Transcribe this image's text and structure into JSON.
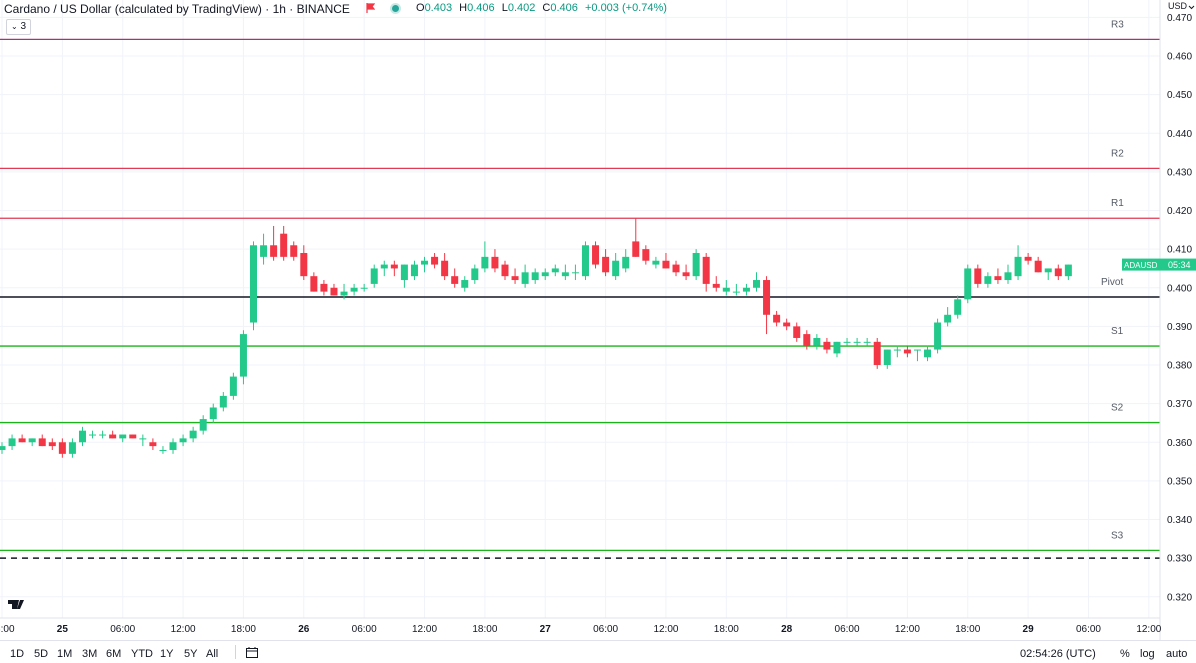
{
  "header": {
    "title": "Cardano / US Dollar (calculated by TradingView) · 1h · BINANCE",
    "ohlc": [
      {
        "k": "O",
        "v": "0.403"
      },
      {
        "k": "H",
        "v": "0.406"
      },
      {
        "k": "L",
        "v": "0.402"
      },
      {
        "k": "C",
        "v": "0.406"
      },
      {
        "k": "",
        "v": "+0.003 (+0.74%)"
      }
    ],
    "indicator_count": "3",
    "currency": "USD"
  },
  "colors": {
    "up": "#26a69a",
    "up_fill": "#22c98a",
    "down": "#f23645",
    "resistance": "#e03a55",
    "r3": "#a7327a",
    "support": "#1ab31a",
    "pivot": "#131722",
    "grid": "#f0f3fa"
  },
  "chart_data": {
    "type": "candlestick",
    "symbol": "ADAUSD",
    "timeframe": "1h",
    "price_label": {
      "symbol": "ADAUSD",
      "countdown": "05:34",
      "price": 0.406
    },
    "ylim": [
      0.3145,
      0.4745
    ],
    "yticks": [
      0.47,
      0.46,
      0.45,
      0.44,
      0.43,
      0.42,
      0.41,
      0.4,
      0.39,
      0.38,
      0.37,
      0.36,
      0.35,
      0.34,
      0.33,
      0.32
    ],
    "xticks": [
      {
        "t": 0,
        "label": "18:00"
      },
      {
        "t": 6,
        "label": "25"
      },
      {
        "t": 12,
        "label": "06:00"
      },
      {
        "t": 18,
        "label": "12:00"
      },
      {
        "t": 24,
        "label": "18:00"
      },
      {
        "t": 30,
        "label": "26"
      },
      {
        "t": 36,
        "label": "06:00"
      },
      {
        "t": 42,
        "label": "12:00"
      },
      {
        "t": 48,
        "label": "18:00"
      },
      {
        "t": 54,
        "label": "27"
      },
      {
        "t": 60,
        "label": "06:00"
      },
      {
        "t": 66,
        "label": "12:00"
      },
      {
        "t": 72,
        "label": "18:00"
      },
      {
        "t": 78,
        "label": "28"
      },
      {
        "t": 84,
        "label": "06:00"
      },
      {
        "t": 90,
        "label": "12:00"
      },
      {
        "t": 96,
        "label": "18:00"
      },
      {
        "t": 102,
        "label": "29"
      },
      {
        "t": 108,
        "label": "06:00"
      },
      {
        "t": 114,
        "label": "12:00"
      }
    ],
    "levels": [
      {
        "name": "R3",
        "value": 0.4643,
        "role": "r3"
      },
      {
        "name": "R2",
        "value": 0.4309,
        "role": "resistance"
      },
      {
        "name": "R1",
        "value": 0.418,
        "role": "resistance"
      },
      {
        "name": "Pivot",
        "value": 0.3976,
        "role": "pivot"
      },
      {
        "name": "S1",
        "value": 0.3849,
        "role": "support"
      },
      {
        "name": "S2",
        "value": 0.3651,
        "role": "support"
      },
      {
        "name": "S3",
        "value": 0.332,
        "role": "support"
      }
    ],
    "dashed_level": 0.33,
    "candles": [
      [
        0.358,
        0.36,
        0.357,
        0.359
      ],
      [
        0.359,
        0.362,
        0.358,
        0.361
      ],
      [
        0.361,
        0.362,
        0.36,
        0.36
      ],
      [
        0.36,
        0.361,
        0.359,
        0.361
      ],
      [
        0.361,
        0.362,
        0.359,
        0.359
      ],
      [
        0.36,
        0.361,
        0.358,
        0.359
      ],
      [
        0.36,
        0.361,
        0.356,
        0.357
      ],
      [
        0.357,
        0.361,
        0.356,
        0.36
      ],
      [
        0.36,
        0.364,
        0.359,
        0.363
      ],
      [
        0.362,
        0.363,
        0.361,
        0.362
      ],
      [
        0.362,
        0.363,
        0.361,
        0.362
      ],
      [
        0.362,
        0.363,
        0.361,
        0.361
      ],
      [
        0.361,
        0.362,
        0.36,
        0.362
      ],
      [
        0.362,
        0.362,
        0.361,
        0.361
      ],
      [
        0.361,
        0.362,
        0.359,
        0.361
      ],
      [
        0.36,
        0.361,
        0.358,
        0.359
      ],
      [
        0.358,
        0.359,
        0.357,
        0.358
      ],
      [
        0.358,
        0.361,
        0.357,
        0.36
      ],
      [
        0.36,
        0.362,
        0.359,
        0.361
      ],
      [
        0.361,
        0.364,
        0.36,
        0.363
      ],
      [
        0.363,
        0.367,
        0.362,
        0.366
      ],
      [
        0.366,
        0.37,
        0.365,
        0.369
      ],
      [
        0.369,
        0.373,
        0.368,
        0.372
      ],
      [
        0.372,
        0.378,
        0.371,
        0.377
      ],
      [
        0.377,
        0.389,
        0.375,
        0.388
      ],
      [
        0.391,
        0.412,
        0.389,
        0.411
      ],
      [
        0.408,
        0.414,
        0.406,
        0.411
      ],
      [
        0.411,
        0.416,
        0.407,
        0.408
      ],
      [
        0.414,
        0.416,
        0.407,
        0.408
      ],
      [
        0.411,
        0.412,
        0.407,
        0.408
      ],
      [
        0.409,
        0.411,
        0.402,
        0.403
      ],
      [
        0.403,
        0.404,
        0.399,
        0.399
      ],
      [
        0.401,
        0.402,
        0.398,
        0.399
      ],
      [
        0.4,
        0.401,
        0.398,
        0.398
      ],
      [
        0.398,
        0.401,
        0.397,
        0.399
      ],
      [
        0.399,
        0.401,
        0.398,
        0.4
      ],
      [
        0.4,
        0.401,
        0.399,
        0.4
      ],
      [
        0.401,
        0.406,
        0.4,
        0.405
      ],
      [
        0.405,
        0.407,
        0.403,
        0.406
      ],
      [
        0.406,
        0.407,
        0.403,
        0.405
      ],
      [
        0.402,
        0.406,
        0.4,
        0.406
      ],
      [
        0.403,
        0.407,
        0.402,
        0.406
      ],
      [
        0.406,
        0.408,
        0.404,
        0.407
      ],
      [
        0.408,
        0.409,
        0.405,
        0.406
      ],
      [
        0.407,
        0.409,
        0.402,
        0.403
      ],
      [
        0.403,
        0.405,
        0.4,
        0.401
      ],
      [
        0.4,
        0.403,
        0.399,
        0.402
      ],
      [
        0.402,
        0.406,
        0.401,
        0.405
      ],
      [
        0.405,
        0.412,
        0.404,
        0.408
      ],
      [
        0.408,
        0.41,
        0.404,
        0.405
      ],
      [
        0.406,
        0.407,
        0.402,
        0.403
      ],
      [
        0.403,
        0.405,
        0.401,
        0.402
      ],
      [
        0.401,
        0.406,
        0.4,
        0.404
      ],
      [
        0.402,
        0.405,
        0.401,
        0.404
      ],
      [
        0.403,
        0.405,
        0.402,
        0.404
      ],
      [
        0.404,
        0.406,
        0.403,
        0.405
      ],
      [
        0.403,
        0.406,
        0.402,
        0.404
      ],
      [
        0.404,
        0.406,
        0.402,
        0.404
      ],
      [
        0.403,
        0.412,
        0.402,
        0.411
      ],
      [
        0.411,
        0.412,
        0.405,
        0.406
      ],
      [
        0.408,
        0.41,
        0.403,
        0.404
      ],
      [
        0.403,
        0.409,
        0.402,
        0.407
      ],
      [
        0.405,
        0.41,
        0.404,
        0.408
      ],
      [
        0.412,
        0.418,
        0.408,
        0.408
      ],
      [
        0.41,
        0.411,
        0.406,
        0.407
      ],
      [
        0.406,
        0.408,
        0.405,
        0.407
      ],
      [
        0.407,
        0.409,
        0.405,
        0.405
      ],
      [
        0.406,
        0.407,
        0.403,
        0.404
      ],
      [
        0.404,
        0.406,
        0.402,
        0.403
      ],
      [
        0.403,
        0.41,
        0.402,
        0.409
      ],
      [
        0.408,
        0.409,
        0.399,
        0.401
      ],
      [
        0.401,
        0.403,
        0.399,
        0.4
      ],
      [
        0.399,
        0.402,
        0.398,
        0.4
      ],
      [
        0.399,
        0.401,
        0.398,
        0.399
      ],
      [
        0.399,
        0.401,
        0.398,
        0.4
      ],
      [
        0.4,
        0.404,
        0.399,
        0.402
      ],
      [
        0.402,
        0.403,
        0.388,
        0.393
      ],
      [
        0.393,
        0.394,
        0.39,
        0.391
      ],
      [
        0.391,
        0.392,
        0.389,
        0.39
      ],
      [
        0.39,
        0.391,
        0.386,
        0.387
      ],
      [
        0.388,
        0.389,
        0.384,
        0.385
      ],
      [
        0.385,
        0.388,
        0.384,
        0.387
      ],
      [
        0.386,
        0.387,
        0.383,
        0.384
      ],
      [
        0.383,
        0.386,
        0.382,
        0.386
      ],
      [
        0.386,
        0.387,
        0.385,
        0.386
      ],
      [
        0.386,
        0.387,
        0.385,
        0.386
      ],
      [
        0.386,
        0.387,
        0.385,
        0.386
      ],
      [
        0.386,
        0.387,
        0.379,
        0.38
      ],
      [
        0.38,
        0.384,
        0.379,
        0.384
      ],
      [
        0.384,
        0.385,
        0.382,
        0.384
      ],
      [
        0.384,
        0.385,
        0.382,
        0.383
      ],
      [
        0.384,
        0.384,
        0.381,
        0.384
      ],
      [
        0.382,
        0.385,
        0.381,
        0.384
      ],
      [
        0.384,
        0.392,
        0.383,
        0.391
      ],
      [
        0.391,
        0.395,
        0.39,
        0.393
      ],
      [
        0.393,
        0.398,
        0.392,
        0.397
      ],
      [
        0.397,
        0.406,
        0.396,
        0.405
      ],
      [
        0.405,
        0.406,
        0.4,
        0.401
      ],
      [
        0.401,
        0.404,
        0.4,
        0.403
      ],
      [
        0.403,
        0.405,
        0.401,
        0.402
      ],
      [
        0.402,
        0.406,
        0.401,
        0.404
      ],
      [
        0.403,
        0.411,
        0.402,
        0.408
      ],
      [
        0.408,
        0.409,
        0.406,
        0.407
      ],
      [
        0.407,
        0.408,
        0.404,
        0.404
      ],
      [
        0.404,
        0.405,
        0.402,
        0.405
      ],
      [
        0.405,
        0.406,
        0.402,
        0.403
      ],
      [
        0.403,
        0.406,
        0.402,
        0.406
      ]
    ]
  },
  "bottom_bar": {
    "ranges": [
      "1D",
      "5D",
      "1M",
      "3M",
      "6M",
      "YTD",
      "1Y",
      "5Y",
      "All"
    ],
    "clock": "02:54:26 (UTC)",
    "percent_label": "%",
    "log_label": "log",
    "auto_label": "auto"
  }
}
